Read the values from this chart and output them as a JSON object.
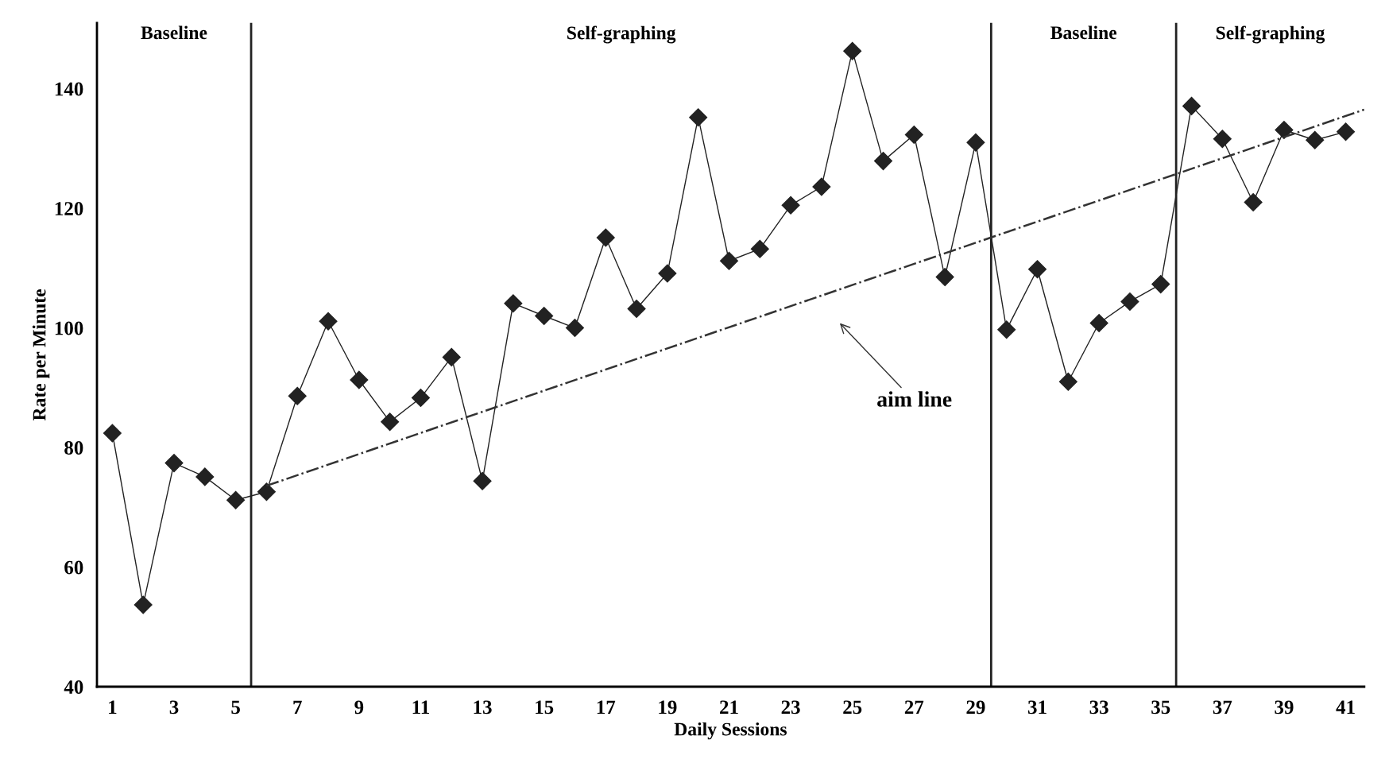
{
  "chart_data": {
    "type": "line",
    "xlabel": "Daily Sessions",
    "ylabel": "Rate per Minute",
    "x": [
      1,
      2,
      3,
      4,
      5,
      6,
      7,
      8,
      9,
      10,
      11,
      12,
      13,
      14,
      15,
      16,
      17,
      18,
      19,
      20,
      21,
      22,
      23,
      24,
      25,
      26,
      27,
      28,
      29,
      30,
      31,
      32,
      33,
      34,
      35,
      36,
      37,
      38,
      39,
      40,
      41
    ],
    "series": [
      {
        "color": "#222222",
        "marker": "diamond",
        "line_style": "solid",
        "values": [
          82.4,
          53.7,
          77.4,
          75.1,
          71.2,
          72.6,
          88.6,
          101.1,
          91.3,
          84.3,
          88.3,
          95.1,
          74.4,
          104.1,
          102.0,
          100.0,
          115.1,
          103.2,
          109.1,
          135.2,
          111.2,
          113.2,
          120.5,
          123.6,
          146.3,
          127.9,
          132.3,
          108.5,
          131.0,
          99.7,
          109.8,
          91.0,
          100.8,
          104.4,
          107.3,
          137.1,
          131.6,
          121.0,
          133.1,
          131.4,
          132.8
        ]
      },
      {
        "type": "line",
        "color": "#333333",
        "marker": "none",
        "line_style": "dashdot",
        "x": [
          6,
          41.6
        ],
        "values": [
          73.6,
          136.5
        ]
      }
    ],
    "xlim": [
      0.5,
      41.6
    ],
    "ylim": [
      40,
      151
    ],
    "xticks": [
      1,
      3,
      5,
      7,
      9,
      11,
      13,
      15,
      17,
      19,
      21,
      23,
      25,
      27,
      29,
      31,
      33,
      35,
      37,
      39,
      41
    ],
    "yticks": [
      40,
      60,
      80,
      100,
      120,
      140
    ],
    "ref_lines": [
      {
        "axis": "x",
        "value": 5.5,
        "color": "#222222"
      },
      {
        "axis": "x",
        "value": 29.5,
        "color": "#222222"
      },
      {
        "axis": "x",
        "value": 35.5,
        "color": "#222222"
      }
    ],
    "annotations": [
      "Baseline",
      "Self-graphing",
      "Baseline",
      "Self-graphing",
      "aim line"
    ],
    "grid": false,
    "legend": false
  }
}
